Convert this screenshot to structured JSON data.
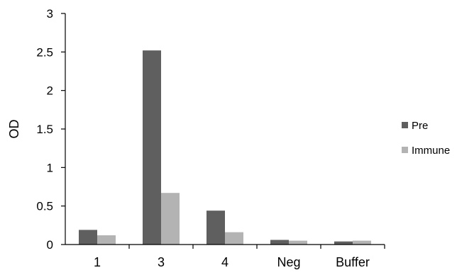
{
  "chart_data": {
    "type": "bar",
    "categories": [
      "1",
      "3",
      "4",
      "Neg",
      "Buffer"
    ],
    "series": [
      {
        "name": "Pre",
        "values": [
          0.19,
          2.52,
          0.44,
          0.06,
          0.04
        ],
        "color": "#5f5f5f"
      },
      {
        "name": "Immune",
        "values": [
          0.12,
          0.67,
          0.16,
          0.05,
          0.05
        ],
        "color": "#b3b3b3"
      }
    ],
    "ylabel": "OD",
    "xlabel": "",
    "ylim": [
      0,
      3
    ],
    "yticks": [
      "0",
      "0.5",
      "1",
      "1.5",
      "2",
      "2.5",
      "3"
    ],
    "grid": false,
    "legend_position": "right"
  }
}
